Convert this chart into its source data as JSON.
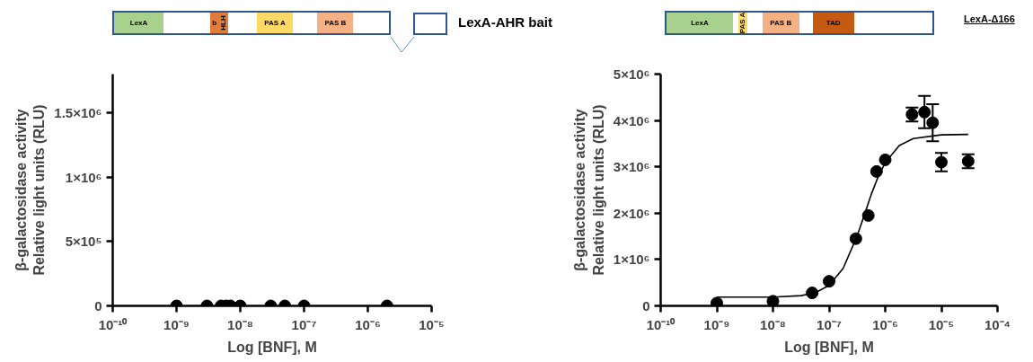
{
  "chart_data": [
    {
      "type": "scatter",
      "annotations": [
        "LexA",
        "b",
        "HLH",
        "PAS A",
        "PAS B",
        "LexA-AHR bait"
      ],
      "xlabel": "Log [BNF], M",
      "ylabel": "β-galactosidase activity\nRelative light units (RLU)",
      "log": "x",
      "marker": "circle",
      "grid": false,
      "x": [
        1e-09,
        3e-09,
        5e-09,
        6e-09,
        7e-09,
        1e-08,
        3e-08,
        5e-08,
        1e-07,
        2e-06
      ],
      "series": [
        {
          "color": "#000000",
          "values": [
            0,
            0,
            0,
            0,
            0,
            0,
            0,
            0,
            0,
            0
          ]
        }
      ],
      "xlim": [
        1e-10,
        1e-05
      ],
      "xticks": [
        {
          "value": 1e-10,
          "label": "10⁻¹⁰"
        },
        {
          "value": 1e-09,
          "label": "10⁻⁹"
        },
        {
          "value": 1e-08,
          "label": "10⁻⁸"
        },
        {
          "value": 1e-07,
          "label": "10⁻⁷"
        },
        {
          "value": 1e-06,
          "label": "10⁻⁶"
        },
        {
          "value": 1e-05,
          "label": "10⁻⁵"
        }
      ],
      "ylim": [
        0,
        1800000
      ],
      "yticks": [
        0,
        {
          "value": 500000,
          "label": "5×10⁵"
        },
        {
          "value": 1000000,
          "label": "1×10⁶"
        },
        {
          "value": 1500000,
          "label": "1.5×10⁶"
        }
      ]
    },
    {
      "type": "scatter",
      "annotations": [
        "LexA",
        "PAS A",
        "PAS B",
        "TAD",
        "LexA-Δ166"
      ],
      "xlabel": "Log [BNF], M",
      "ylabel": "β-galactosidase activity\nRelative light units (RLU)",
      "log": "x",
      "marker": "circle",
      "grid": false,
      "x": [
        1e-09,
        1e-08,
        5e-08,
        1e-07,
        3e-07,
        5e-07,
        7e-07,
        1e-06,
        3e-06,
        5e-06,
        7e-06,
        1e-05,
        3e-05
      ],
      "series": [
        {
          "type": "scatter",
          "color": "#000000",
          "values": [
            60000,
            100000,
            280000,
            530000,
            1450000,
            1950000,
            2900000,
            3150000,
            4130000,
            4180000,
            3950000,
            3100000,
            3120000
          ],
          "errors": [
            null,
            null,
            null,
            null,
            null,
            null,
            null,
            null,
            150000,
            350000,
            400000,
            200000,
            150000
          ]
        },
        {
          "type": "line",
          "marker": "none",
          "color": "#000000",
          "x": [
            1e-09,
            1e-08,
            3.16e-08,
            5.62e-08,
            1e-07,
            1.78e-07,
            3.16e-07,
            4.22e-07,
            5.62e-07,
            7.5e-07,
            1e-06,
            1.78e-06,
            3.16e-06,
            1e-05,
            3e-05
          ],
          "values": [
            190000,
            190000,
            220000,
            280000,
            440000,
            810000,
            1510000,
            1950000,
            2400000,
            2790000,
            3090000,
            3460000,
            3610000,
            3690000,
            3700000
          ]
        }
      ],
      "xlim": [
        1e-10,
        0.0001
      ],
      "xticks": [
        {
          "value": 1e-10,
          "label": "10⁻¹⁰"
        },
        {
          "value": 1e-09,
          "label": "10⁻⁹"
        },
        {
          "value": 1e-08,
          "label": "10⁻⁸"
        },
        {
          "value": 1e-07,
          "label": "10⁻⁷"
        },
        {
          "value": 1e-06,
          "label": "10⁻⁶"
        },
        {
          "value": 1e-05,
          "label": "10⁻⁵"
        },
        {
          "value": 0.0001,
          "label": "10⁻⁴"
        }
      ],
      "ylim": [
        0,
        5000000
      ],
      "yticks": [
        0,
        {
          "value": 1000000,
          "label": "1×10⁶"
        },
        {
          "value": 2000000,
          "label": "2×10⁶"
        },
        {
          "value": 3000000,
          "label": "3×10⁶"
        },
        {
          "value": 4000000,
          "label": "4×10⁶"
        },
        {
          "value": 5000000,
          "label": "5×10⁶"
        }
      ]
    }
  ]
}
